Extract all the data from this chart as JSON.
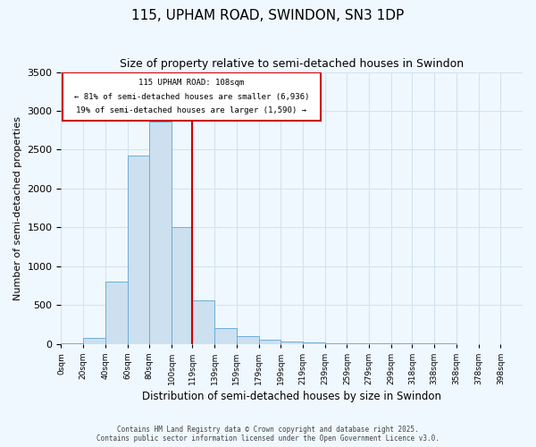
{
  "title": "115, UPHAM ROAD, SWINDON, SN3 1DP",
  "subtitle": "Size of property relative to semi-detached houses in Swindon",
  "xlabel": "Distribution of semi-detached houses by size in Swindon",
  "ylabel": "Number of semi-detached properties",
  "bin_labels": [
    "0sqm",
    "20sqm",
    "40sqm",
    "60sqm",
    "80sqm",
    "100sqm",
    "119sqm",
    "139sqm",
    "159sqm",
    "179sqm",
    "199sqm",
    "219sqm",
    "239sqm",
    "259sqm",
    "279sqm",
    "299sqm",
    "318sqm",
    "338sqm",
    "358sqm",
    "378sqm",
    "398sqm"
  ],
  "bar_values": [
    10,
    75,
    800,
    2420,
    2860,
    1500,
    560,
    200,
    100,
    55,
    30,
    20,
    10,
    5,
    5,
    3,
    3,
    2,
    1,
    1
  ],
  "bar_color": "#cce0f0",
  "bar_edgecolor": "#6baed6",
  "annotation_text_line1": "115 UPHAM ROAD: 108sqm",
  "annotation_text_line2": "← 81% of semi-detached houses are smaller (6,936)",
  "annotation_text_line3": "19% of semi-detached houses are larger (1,590) →",
  "annotation_box_color": "#cc0000",
  "annotation_text_color": "#000000",
  "grid_color": "#d0e4f0",
  "background_color": "#f0f8ff",
  "ylim": [
    0,
    3500
  ],
  "footer_line1": "Contains HM Land Registry data © Crown copyright and database right 2025.",
  "footer_line2": "Contains public sector information licensed under the Open Government Licence v3.0.",
  "bin_edges": [
    0,
    20,
    40,
    60,
    80,
    100,
    119,
    139,
    159,
    179,
    199,
    219,
    239,
    259,
    279,
    299,
    318,
    338,
    358,
    378,
    398
  ]
}
